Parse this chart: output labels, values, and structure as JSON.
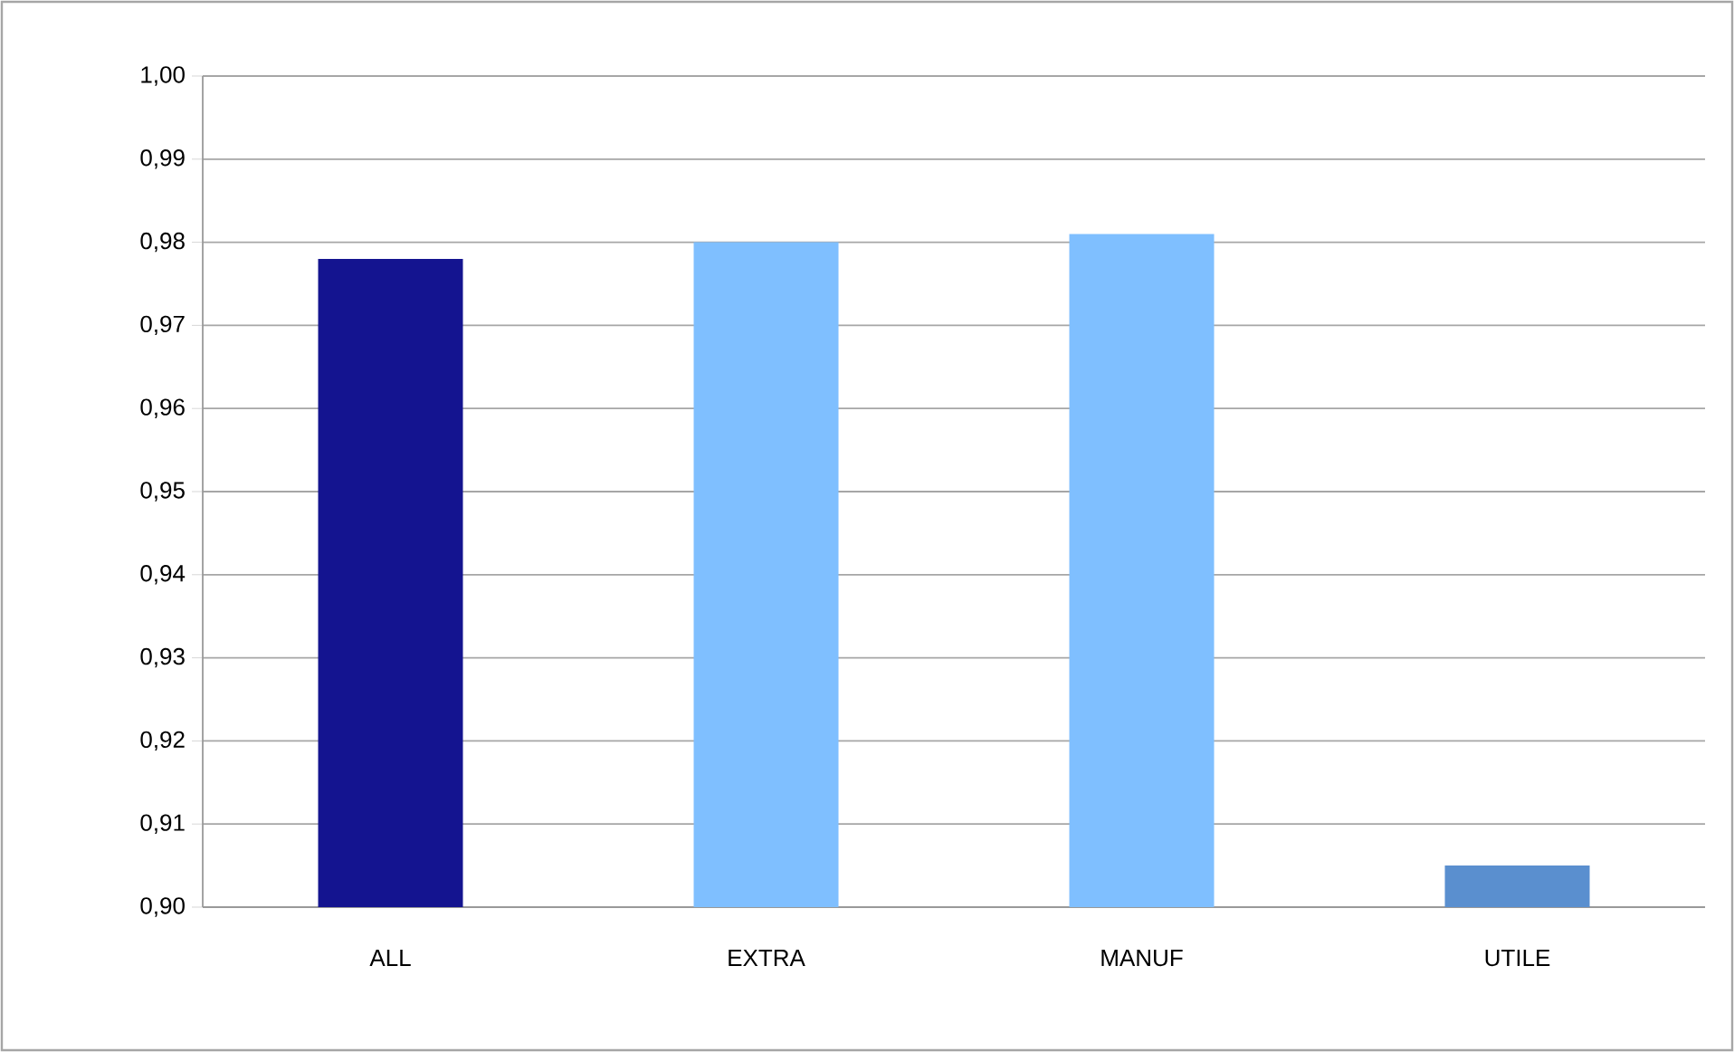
{
  "chart_data": {
    "type": "bar",
    "categories": [
      "ALL",
      "EXTRA",
      "MANUF",
      "UTILE"
    ],
    "values": [
      0.978,
      0.98,
      0.981,
      0.905
    ],
    "colors": [
      "#141490",
      "#7fbfff",
      "#7fbfff",
      "#5a8fcf"
    ],
    "ylim": [
      0.9,
      1.0
    ],
    "yticks": [
      {
        "value": 0.9,
        "label": "0,90"
      },
      {
        "value": 0.91,
        "label": "0,91"
      },
      {
        "value": 0.92,
        "label": "0,92"
      },
      {
        "value": 0.93,
        "label": "0,93"
      },
      {
        "value": 0.94,
        "label": "0,94"
      },
      {
        "value": 0.95,
        "label": "0,95"
      },
      {
        "value": 0.96,
        "label": "0,96"
      },
      {
        "value": 0.97,
        "label": "0,97"
      },
      {
        "value": 0.98,
        "label": "0,98"
      },
      {
        "value": 0.99,
        "label": "0,99"
      },
      {
        "value": 1.0,
        "label": "1,00"
      }
    ],
    "grid": "y"
  }
}
